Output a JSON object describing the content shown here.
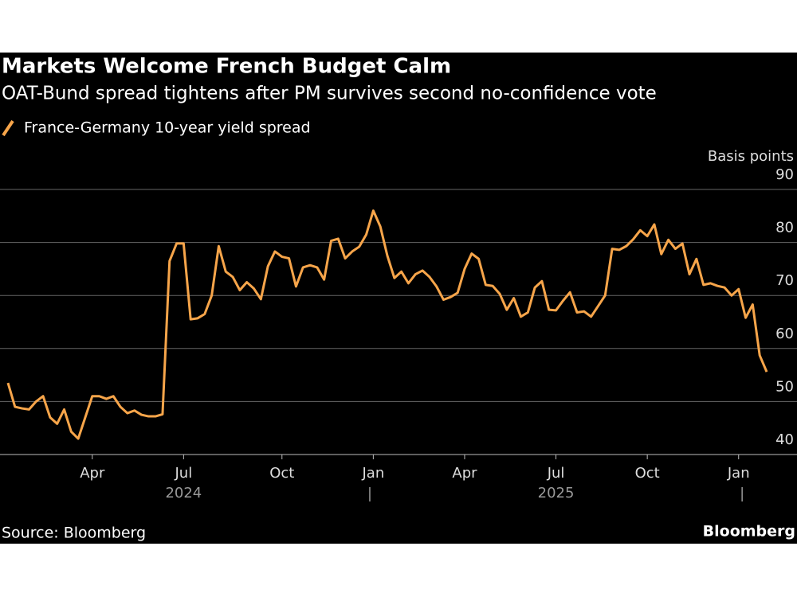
{
  "chart_data": {
    "type": "line",
    "title": "Markets Welcome French Budget Calm",
    "subtitle": "OAT-Bund spread tightens after PM survives second no-confidence vote",
    "y_axis_label": "Basis points",
    "source": "Source: Bloomberg",
    "brand": "Bloomberg",
    "categories": [
      null,
      null,
      null,
      null,
      null,
      null,
      null,
      null,
      null,
      null,
      null,
      null,
      "Apr",
      null,
      null,
      null,
      null,
      null,
      null,
      null,
      null,
      null,
      null,
      null,
      null,
      "Jul",
      null,
      null,
      null,
      null,
      null,
      null,
      null,
      null,
      null,
      null,
      null,
      null,
      null,
      "Oct",
      null,
      null,
      null,
      null,
      null,
      null,
      null,
      null,
      null,
      null,
      null,
      null,
      "Jan",
      null,
      null,
      null,
      null,
      null,
      null,
      null,
      null,
      null,
      null,
      null,
      null,
      "Apr",
      null,
      null,
      null,
      null,
      null,
      null,
      null,
      null,
      null,
      null,
      null,
      null,
      "Jul",
      null,
      null,
      null,
      null,
      null,
      null,
      null,
      null,
      null,
      null,
      null,
      null,
      "Oct",
      null,
      null,
      null,
      null,
      null,
      null,
      null,
      null,
      null,
      null,
      null,
      null,
      "Jan",
      null,
      null,
      null,
      null
    ],
    "years": [
      null,
      null,
      null,
      null,
      null,
      null,
      null,
      null,
      null,
      null,
      null,
      null,
      null,
      null,
      null,
      null,
      null,
      null,
      null,
      null,
      null,
      null,
      null,
      null,
      null,
      "2024",
      null,
      null,
      null,
      null,
      null,
      null,
      null,
      null,
      null,
      null,
      null,
      null,
      null,
      null,
      null,
      null,
      null,
      null,
      null,
      null,
      null,
      null,
      null,
      null,
      null,
      null,
      null,
      null,
      null,
      null,
      null,
      null,
      null,
      null,
      null,
      null,
      null,
      null,
      null,
      null,
      null,
      null,
      null,
      null,
      null,
      null,
      null,
      null,
      null,
      null,
      null,
      null,
      "2025",
      null,
      null,
      null,
      null,
      null,
      null,
      null,
      null,
      null,
      null,
      null,
      null,
      null,
      null,
      null,
      null,
      null,
      null,
      null,
      null,
      null,
      null,
      null,
      null,
      null,
      null,
      null,
      null,
      null,
      null
    ],
    "series": [
      {
        "name": "France-Germany 10-year yield spread",
        "color": "#f7a54a",
        "values": [
          53.5,
          49,
          48.7,
          48.5,
          50,
          51,
          47,
          45.8,
          48.5,
          44.3,
          43,
          47,
          51,
          51,
          50.5,
          51,
          49,
          47.8,
          48.3,
          47.5,
          47.2,
          47.2,
          47.6,
          76.5,
          79.8,
          79.8,
          65.5,
          65.7,
          66.5,
          70,
          79.3,
          74.5,
          73.5,
          71,
          72.5,
          71.3,
          69.3,
          75.5,
          78.3,
          77.3,
          77,
          71.7,
          75.3,
          75.7,
          75.3,
          73,
          80.3,
          80.7,
          77,
          78.3,
          79.2,
          81.5,
          86,
          83,
          77.5,
          73.3,
          74.5,
          72.3,
          74,
          74.7,
          73.5,
          71.7,
          69.2,
          69.7,
          70.5,
          75,
          77.9,
          76.9,
          72,
          71.8,
          70.3,
          67.3,
          69.5,
          66,
          66.8,
          71.5,
          72.7,
          67.3,
          67.2,
          69,
          70.6,
          66.8,
          67,
          66,
          68,
          70,
          78.8,
          78.6,
          79.3,
          80.6,
          82.3,
          81.2,
          83.4,
          77.8,
          80.5,
          78.8,
          79.8,
          74,
          76.9,
          72,
          72.3,
          71.8,
          71.5,
          70,
          71.2,
          65.8,
          68.3,
          58.7,
          55.6
        ]
      }
    ],
    "ylim": [
      40,
      90
    ],
    "yticks": [
      40,
      50,
      60,
      70,
      80,
      90
    ],
    "grid": true
  }
}
